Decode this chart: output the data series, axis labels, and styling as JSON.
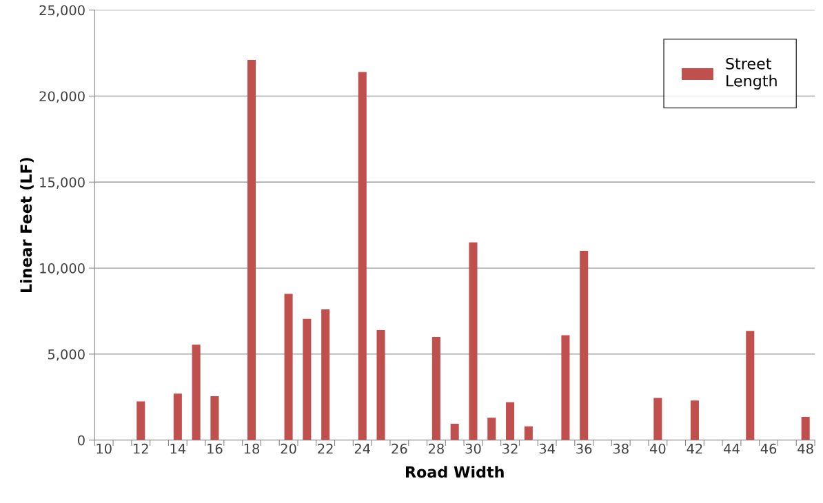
{
  "chart_data": {
    "type": "bar",
    "xlabel": "Road Width",
    "ylabel": "Linear Feet (LF)",
    "categories": [
      "10",
      null,
      "12",
      null,
      "14",
      null,
      "16",
      null,
      "18",
      null,
      "20",
      null,
      "22",
      null,
      "24",
      null,
      "26",
      null,
      "28",
      null,
      "30",
      null,
      "32",
      null,
      "34",
      null,
      "36",
      null,
      "38",
      null,
      "40",
      null,
      "42",
      null,
      "44",
      null,
      "46",
      null,
      "48"
    ],
    "series": [
      {
        "name": "Street Length",
        "color": "#c0504d",
        "values": [
          null,
          null,
          2250,
          null,
          2700,
          5550,
          2550,
          null,
          22100,
          null,
          8500,
          7050,
          7600,
          null,
          21400,
          6400,
          null,
          null,
          6000,
          950,
          11500,
          1300,
          2200,
          800,
          null,
          6100,
          11000,
          null,
          null,
          null,
          2450,
          null,
          2300,
          null,
          null,
          6350,
          null,
          null,
          1350
        ]
      }
    ],
    "ylim": [
      0,
      25000
    ],
    "yticks": [
      0,
      {
        "value": 5000,
        "label": "5,000"
      },
      {
        "value": 10000,
        "label": "10,000"
      },
      {
        "value": 15000,
        "label": "15,000"
      },
      {
        "value": 20000,
        "label": "20,000"
      },
      {
        "value": 25000,
        "label": "25,000"
      }
    ],
    "grid": "y",
    "legend": "top right"
  }
}
